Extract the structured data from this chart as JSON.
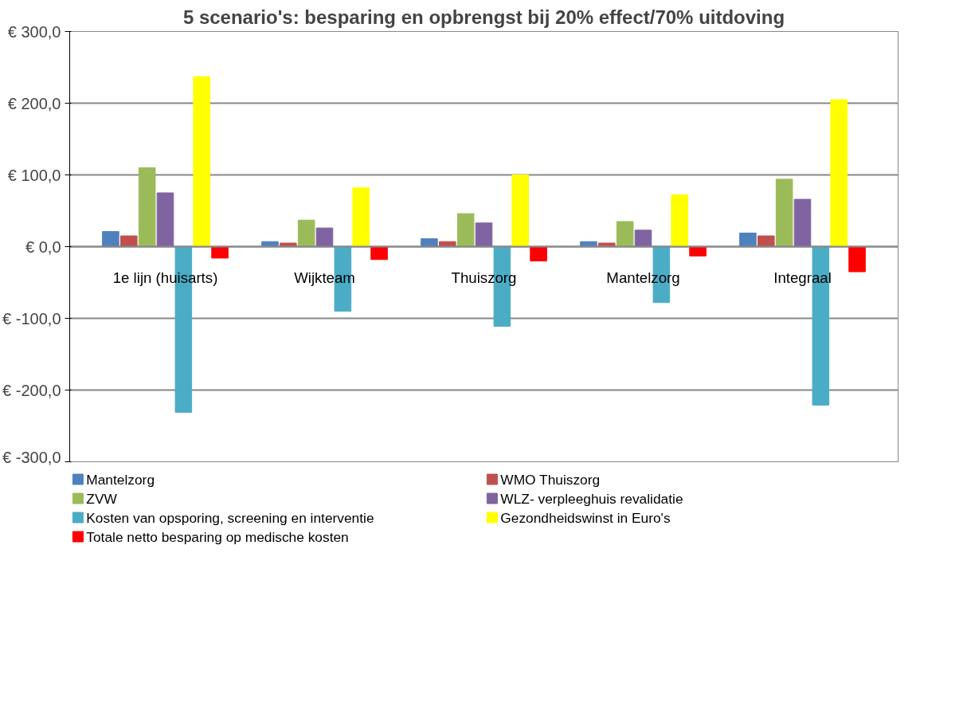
{
  "chart_data": {
    "type": "bar",
    "title": "5 scenario's: besparing en opbrengst bij 20% effect/70% uitdoving",
    "categories": [
      "1e lijn (huisarts)",
      "Wijkteam",
      "Thuiszorg",
      "Mantelzorg",
      "Integraal"
    ],
    "series": [
      {
        "name": "Mantelzorg",
        "color": "#4f81bd",
        "values": [
          21,
          7,
          11,
          7,
          19
        ]
      },
      {
        "name": "WMO Thuiszorg",
        "color": "#c0504d",
        "values": [
          15,
          5,
          7,
          5,
          15
        ]
      },
      {
        "name": "ZVW",
        "color": "#9bbb59",
        "values": [
          110,
          37,
          46,
          35,
          94
        ]
      },
      {
        "name": "WLZ- verpleeghuis revalidatie",
        "color": "#8064a2",
        "values": [
          75,
          26,
          33,
          23,
          66
        ]
      },
      {
        "name": "Kosten van opsporing, screening en interventie",
        "color": "#4bacc6",
        "values": [
          -231,
          -90,
          -111,
          -78,
          -221
        ]
      },
      {
        "name": "Gezondheidswinst in Euro's",
        "color": "#ffff00",
        "values": [
          237,
          82,
          100,
          72,
          205
        ]
      },
      {
        "name": "Totale netto besparing op medische kosten",
        "color": "#ff0000",
        "values": [
          -16,
          -18,
          -20,
          -13,
          -35
        ]
      }
    ],
    "ylim": [
      -300,
      300
    ],
    "yticks": [
      {
        "value": -300,
        "label": "€ -300,0"
      },
      {
        "value": -200,
        "label": "€ -200,0"
      },
      {
        "value": -100,
        "label": "€ -100,0"
      },
      {
        "value": 0,
        "label": "€ 0,0"
      },
      {
        "value": 100,
        "label": "€ 100,0"
      },
      {
        "value": 200,
        "label": "€ 200,0"
      },
      {
        "value": 300,
        "label": "€ 300,0"
      }
    ],
    "grid": "y",
    "legend": "bottom"
  }
}
